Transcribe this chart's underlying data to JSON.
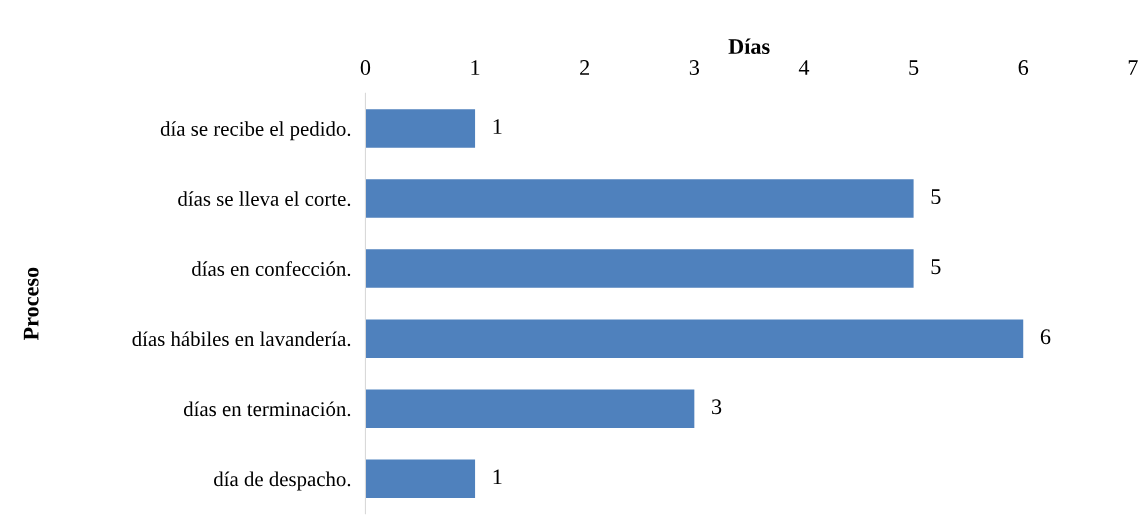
{
  "chart_data": {
    "type": "bar",
    "orientation": "horizontal",
    "xlabel": "Días",
    "ylabel": "Proceso",
    "categories": [
      "día se recibe el pedido.",
      "días se lleva el corte.",
      "días en confección.",
      "días hábiles en lavandería.",
      "días en terminación.",
      "día de despacho."
    ],
    "values": [
      1,
      5,
      5,
      6,
      3,
      1
    ],
    "color": "#4f81bd",
    "xlim": [
      0,
      7
    ],
    "xticks": [
      0,
      1,
      2,
      3,
      4,
      5,
      6,
      7
    ],
    "grid": false,
    "data_labels": true
  }
}
